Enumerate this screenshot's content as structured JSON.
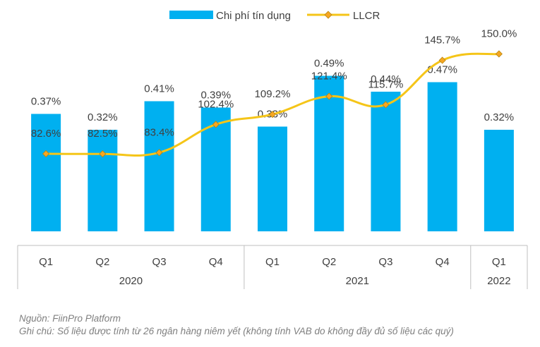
{
  "chart_data": {
    "type": "bar+line",
    "categories": [
      "Q1",
      "Q2",
      "Q3",
      "Q4",
      "Q1",
      "Q2",
      "Q3",
      "Q4",
      "Q1"
    ],
    "year_groups": [
      {
        "label": "2020",
        "count": 4
      },
      {
        "label": "2021",
        "count": 4
      },
      {
        "label": "2022",
        "count": 1
      }
    ],
    "series": [
      {
        "name": "Chi phí tín dụng",
        "type": "bar",
        "color": "#00B0F0",
        "values": [
          0.37,
          0.32,
          0.41,
          0.39,
          0.33,
          0.49,
          0.44,
          0.47,
          0.32
        ],
        "labels": [
          "0.37%",
          "0.32%",
          "0.41%",
          "0.39%",
          "0.33%",
          "0.49%",
          "0.44%",
          "0.47%",
          "0.32%"
        ]
      },
      {
        "name": "LLCR",
        "type": "line",
        "color": "#F5C518",
        "marker_color": "#F6A623",
        "values": [
          82.6,
          82.5,
          83.4,
          102.4,
          109.2,
          121.4,
          115.7,
          145.7,
          150.0
        ],
        "labels": [
          "82.6%",
          "82.5%",
          "83.4%",
          "102.4%",
          "109.2%",
          "121.4%",
          "115.7%",
          "145.7%",
          "150.0%"
        ]
      }
    ],
    "title": "",
    "xlabel": "",
    "ylabel": "",
    "legend_position": "top-center",
    "grid": false
  },
  "notes": {
    "source": "Nguồn: FiinPro Platform",
    "comment": "Ghi chú: Số liệu được tính từ 26 ngân hàng  niêm yết (không tính VAB do không đầy đủ số liệu các quý)"
  }
}
